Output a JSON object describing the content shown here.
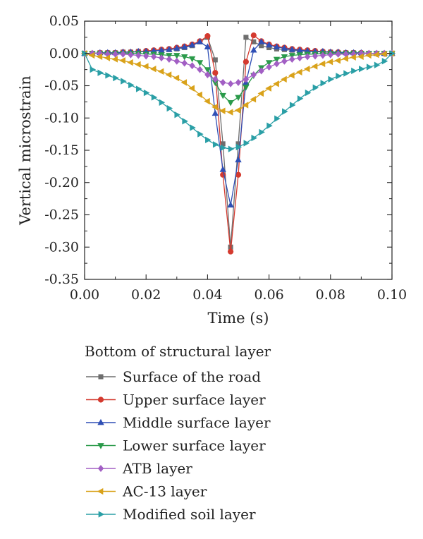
{
  "chart_data": {
    "type": "line",
    "xlabel": "Time (s)",
    "ylabel": "Vertical microstrain",
    "xlim": [
      0.0,
      0.1
    ],
    "ylim": [
      -0.35,
      0.05
    ],
    "x_ticks": [
      0.0,
      0.02,
      0.04,
      0.06,
      0.08,
      0.1
    ],
    "y_ticks": [
      0.05,
      0.0,
      -0.05,
      -0.1,
      -0.15,
      -0.2,
      -0.25,
      -0.3,
      -0.35
    ],
    "x_tick_labels": [
      "0.00",
      "0.02",
      "0.04",
      "0.06",
      "0.08",
      "0.10"
    ],
    "y_tick_labels": [
      "0.05",
      "0.00",
      "-0.05",
      "-0.10",
      "-0.15",
      "-0.20",
      "-0.25",
      "-0.30",
      "-0.35"
    ],
    "grid": false,
    "legend_title": "Bottom of structural layer",
    "legend_position": "bottom",
    "series": [
      {
        "name": "Surface of the road",
        "color": "#6e6e6e",
        "marker": "square",
        "x": [
          0.0,
          0.0025,
          0.005,
          0.0075,
          0.01,
          0.0125,
          0.015,
          0.0175,
          0.02,
          0.0225,
          0.025,
          0.0275,
          0.03,
          0.0325,
          0.035,
          0.0375,
          0.04,
          0.0425,
          0.045,
          0.0475,
          0.05,
          0.0525,
          0.055,
          0.0575,
          0.06,
          0.0625,
          0.065,
          0.0675,
          0.07,
          0.0725,
          0.075,
          0.0775,
          0.08,
          0.0825,
          0.085,
          0.0875,
          0.09,
          0.0925,
          0.095,
          0.0975,
          0.1
        ],
        "y": [
          0.0,
          0.0,
          0.001,
          0.001,
          0.001,
          0.002,
          0.002,
          0.003,
          0.003,
          0.004,
          0.005,
          0.006,
          0.007,
          0.009,
          0.012,
          0.018,
          0.025,
          -0.01,
          -0.14,
          -0.3,
          -0.14,
          0.025,
          0.018,
          0.012,
          0.009,
          0.007,
          0.006,
          0.005,
          0.004,
          0.003,
          0.003,
          0.002,
          0.002,
          0.001,
          0.001,
          0.001,
          0.0,
          0.0,
          0.0,
          0.0,
          0.0
        ]
      },
      {
        "name": "Upper surface layer",
        "color": "#d43a2f",
        "marker": "circle",
        "x": [
          0.0,
          0.0025,
          0.005,
          0.0075,
          0.01,
          0.0125,
          0.015,
          0.0175,
          0.02,
          0.0225,
          0.025,
          0.0275,
          0.03,
          0.0325,
          0.035,
          0.0375,
          0.04,
          0.0425,
          0.045,
          0.0475,
          0.05,
          0.0525,
          0.055,
          0.0575,
          0.06,
          0.0625,
          0.065,
          0.0675,
          0.07,
          0.0725,
          0.075,
          0.0775,
          0.08,
          0.0825,
          0.085,
          0.0875,
          0.09,
          0.0925,
          0.095,
          0.0975,
          0.1
        ],
        "y": [
          0.0,
          0.0,
          0.001,
          0.001,
          0.001,
          0.002,
          0.002,
          0.003,
          0.004,
          0.005,
          0.006,
          0.007,
          0.009,
          0.011,
          0.014,
          0.019,
          0.027,
          -0.03,
          -0.188,
          -0.307,
          -0.188,
          -0.013,
          0.028,
          0.019,
          0.014,
          0.011,
          0.009,
          0.007,
          0.006,
          0.005,
          0.004,
          0.003,
          0.002,
          0.002,
          0.001,
          0.001,
          0.001,
          0.0,
          0.0,
          0.0,
          0.0
        ]
      },
      {
        "name": "Middle surface layer",
        "color": "#2f4fb5",
        "marker": "triangle-up",
        "x": [
          0.0,
          0.0025,
          0.005,
          0.0075,
          0.01,
          0.0125,
          0.015,
          0.0175,
          0.02,
          0.0225,
          0.025,
          0.0275,
          0.03,
          0.0325,
          0.035,
          0.0375,
          0.04,
          0.0425,
          0.045,
          0.0475,
          0.05,
          0.0525,
          0.055,
          0.0575,
          0.06,
          0.0625,
          0.065,
          0.0675,
          0.07,
          0.0725,
          0.075,
          0.0775,
          0.08,
          0.0825,
          0.085,
          0.0875,
          0.09,
          0.0925,
          0.095,
          0.0975,
          0.1
        ],
        "y": [
          0.0,
          0.0,
          0.001,
          0.001,
          0.001,
          0.002,
          0.002,
          0.003,
          0.003,
          0.004,
          0.005,
          0.006,
          0.008,
          0.01,
          0.013,
          0.018,
          0.01,
          -0.093,
          -0.18,
          -0.235,
          -0.165,
          -0.045,
          0.005,
          0.018,
          0.013,
          0.01,
          0.008,
          0.006,
          0.005,
          0.004,
          0.003,
          0.003,
          0.002,
          0.002,
          0.001,
          0.001,
          0.001,
          0.0,
          0.0,
          0.0,
          0.0
        ]
      },
      {
        "name": "Lower surface layer",
        "color": "#2a9a4a",
        "marker": "triangle-down",
        "x": [
          0.0,
          0.0025,
          0.005,
          0.0075,
          0.01,
          0.0125,
          0.015,
          0.0175,
          0.02,
          0.0225,
          0.025,
          0.0275,
          0.03,
          0.0325,
          0.035,
          0.0375,
          0.04,
          0.0425,
          0.045,
          0.0475,
          0.05,
          0.0525,
          0.055,
          0.0575,
          0.06,
          0.0625,
          0.065,
          0.0675,
          0.07,
          0.0725,
          0.075,
          0.0775,
          0.08,
          0.0825,
          0.085,
          0.0875,
          0.09,
          0.0925,
          0.095,
          0.0975,
          0.1
        ],
        "y": [
          0.0,
          0.0,
          0.0,
          0.0,
          0.0,
          0.0,
          0.0,
          0.0,
          -0.001,
          -0.001,
          -0.002,
          -0.003,
          -0.003,
          -0.005,
          -0.008,
          -0.014,
          -0.025,
          -0.045,
          -0.065,
          -0.076,
          -0.068,
          -0.052,
          -0.034,
          -0.022,
          -0.014,
          -0.009,
          -0.005,
          -0.003,
          -0.002,
          -0.001,
          -0.001,
          0.0,
          0.0,
          0.0,
          0.0,
          0.0,
          0.0,
          0.0,
          0.0,
          0.0,
          0.0
        ]
      },
      {
        "name": "ATB layer",
        "color": "#a25fc4",
        "marker": "diamond",
        "x": [
          0.0,
          0.0025,
          0.005,
          0.0075,
          0.01,
          0.0125,
          0.015,
          0.0175,
          0.02,
          0.0225,
          0.025,
          0.0275,
          0.03,
          0.0325,
          0.035,
          0.0375,
          0.04,
          0.0425,
          0.045,
          0.0475,
          0.05,
          0.0525,
          0.055,
          0.0575,
          0.06,
          0.0625,
          0.065,
          0.0675,
          0.07,
          0.0725,
          0.075,
          0.0775,
          0.08,
          0.0825,
          0.085,
          0.0875,
          0.09,
          0.0925,
          0.095,
          0.0975,
          0.1
        ],
        "y": [
          0.0,
          0.0,
          0.0,
          -0.001,
          -0.001,
          -0.001,
          -0.002,
          -0.003,
          -0.004,
          -0.005,
          -0.007,
          -0.009,
          -0.012,
          -0.015,
          -0.019,
          -0.025,
          -0.033,
          -0.04,
          -0.045,
          -0.047,
          -0.045,
          -0.04,
          -0.033,
          -0.027,
          -0.021,
          -0.016,
          -0.012,
          -0.009,
          -0.007,
          -0.005,
          -0.004,
          -0.003,
          -0.002,
          -0.001,
          -0.001,
          -0.001,
          0.0,
          0.0,
          0.0,
          0.0,
          0.0
        ]
      },
      {
        "name": "AC-13 layer",
        "color": "#d9a21a",
        "marker": "triangle-left",
        "x": [
          0.0,
          0.0025,
          0.005,
          0.0075,
          0.01,
          0.0125,
          0.015,
          0.0175,
          0.02,
          0.0225,
          0.025,
          0.0275,
          0.03,
          0.0325,
          0.035,
          0.0375,
          0.04,
          0.0425,
          0.045,
          0.0475,
          0.05,
          0.0525,
          0.055,
          0.0575,
          0.06,
          0.0625,
          0.065,
          0.0675,
          0.07,
          0.0725,
          0.075,
          0.0775,
          0.08,
          0.0825,
          0.085,
          0.0875,
          0.09,
          0.0925,
          0.095,
          0.0975,
          0.1
        ],
        "y": [
          0.0,
          -0.003,
          -0.005,
          -0.007,
          -0.009,
          -0.011,
          -0.014,
          -0.017,
          -0.02,
          -0.024,
          -0.028,
          -0.033,
          -0.038,
          -0.045,
          -0.054,
          -0.064,
          -0.074,
          -0.083,
          -0.089,
          -0.091,
          -0.088,
          -0.08,
          -0.071,
          -0.062,
          -0.054,
          -0.047,
          -0.04,
          -0.034,
          -0.029,
          -0.024,
          -0.02,
          -0.016,
          -0.013,
          -0.011,
          -0.008,
          -0.006,
          -0.005,
          -0.003,
          -0.002,
          -0.001,
          0.0
        ]
      },
      {
        "name": "Modified soil layer",
        "color": "#2a9fa6",
        "marker": "triangle-right",
        "x": [
          0.0,
          0.0025,
          0.005,
          0.0075,
          0.01,
          0.0125,
          0.015,
          0.0175,
          0.02,
          0.0225,
          0.025,
          0.0275,
          0.03,
          0.0325,
          0.035,
          0.0375,
          0.04,
          0.0425,
          0.045,
          0.0475,
          0.05,
          0.0525,
          0.055,
          0.0575,
          0.06,
          0.0625,
          0.065,
          0.0675,
          0.07,
          0.0725,
          0.075,
          0.0775,
          0.08,
          0.0825,
          0.085,
          0.0875,
          0.09,
          0.0925,
          0.095,
          0.0975,
          0.1
        ],
        "y": [
          0.0,
          -0.025,
          -0.03,
          -0.034,
          -0.038,
          -0.043,
          -0.049,
          -0.055,
          -0.061,
          -0.068,
          -0.076,
          -0.085,
          -0.095,
          -0.105,
          -0.115,
          -0.125,
          -0.134,
          -0.141,
          -0.146,
          -0.148,
          -0.145,
          -0.139,
          -0.131,
          -0.122,
          -0.112,
          -0.101,
          -0.09,
          -0.08,
          -0.07,
          -0.061,
          -0.053,
          -0.046,
          -0.04,
          -0.035,
          -0.031,
          -0.027,
          -0.024,
          -0.021,
          -0.018,
          -0.012,
          0.0
        ]
      }
    ]
  }
}
